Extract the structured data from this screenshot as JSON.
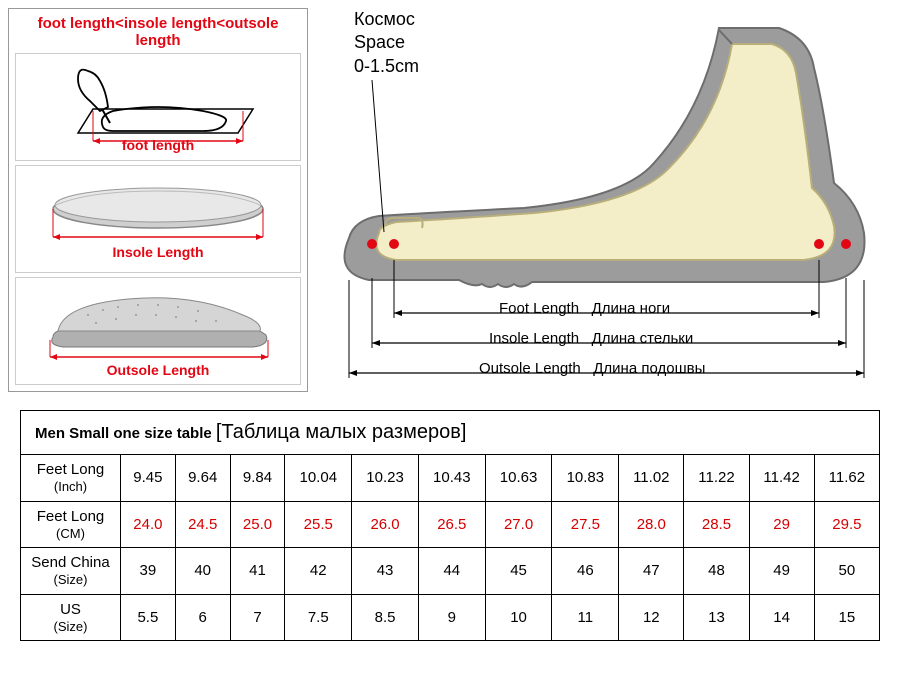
{
  "formula": "foot length<insole length<outsole length",
  "colors": {
    "red": "#e30613",
    "black": "#000000",
    "beige": "#f4eec8",
    "grey_shoe": "#9c9c9c",
    "grey_light": "#cfcfcf",
    "grey_mid": "#b0b0b0",
    "cm_red": "#d40000"
  },
  "left_panel": {
    "foot": {
      "label": "foot length"
    },
    "insole": {
      "label": "Insole Length"
    },
    "outsole": {
      "label": "Outsole Length"
    }
  },
  "main_diagram": {
    "space_ru": "Космос",
    "space_en": "Space",
    "space_val": "0-1.5cm",
    "foot_en": "Foot Length",
    "foot_ru": "Длина ноги",
    "insole_en": "Insole Length",
    "insole_ru": "Длина стельки",
    "outsole_en": "Outsole Length",
    "outsole_ru": "Длина подошвы"
  },
  "table": {
    "title_main": "Men Small one size table",
    "title_sub": "[Таблица малых размеров]",
    "rows": [
      {
        "header_main": "Feet Long",
        "header_sub": "(Inch)",
        "vals": [
          "9.45",
          "9.64",
          "9.84",
          "10.04",
          "10.23",
          "10.43",
          "10.63",
          "10.83",
          "11.02",
          "11.22",
          "11.42",
          "11.62"
        ],
        "cls": ""
      },
      {
        "header_main": "Feet Long",
        "header_sub": "(CM)",
        "vals": [
          "24.0",
          "24.5",
          "25.0",
          "25.5",
          "26.0",
          "26.5",
          "27.0",
          "27.5",
          "28.0",
          "28.5",
          "29",
          "29.5"
        ],
        "cls": "cm-val"
      },
      {
        "header_main": "Send China",
        "header_sub": "(Size)",
        "vals": [
          "39",
          "40",
          "41",
          "42",
          "43",
          "44",
          "45",
          "46",
          "47",
          "48",
          "49",
          "50"
        ],
        "cls": ""
      },
      {
        "header_main": "US",
        "header_sub": "(Size)",
        "vals": [
          "5.5",
          "6",
          "7",
          "7.5",
          "8.5",
          "9",
          "10",
          "11",
          "12",
          "13",
          "14",
          "15"
        ],
        "cls": ""
      }
    ]
  }
}
